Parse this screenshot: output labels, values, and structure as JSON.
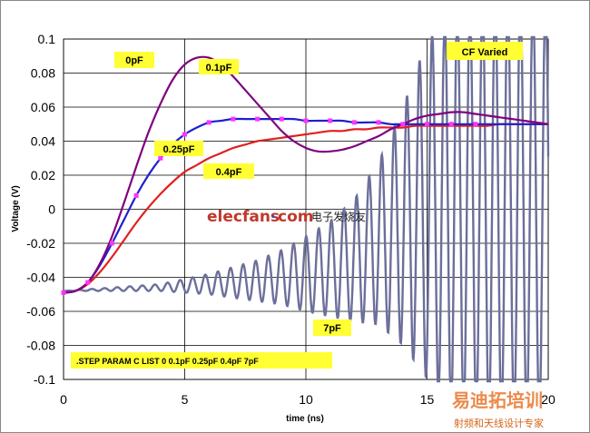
{
  "chart_data": {
    "type": "line",
    "xlabel": "time (ns)",
    "ylabel": "Voltage (V)",
    "xlim": [
      0,
      20
    ],
    "ylim": [
      -0.1,
      0.1
    ],
    "x_ticks": [
      "0",
      "5",
      "10",
      "15",
      "20"
    ],
    "y_ticks": [
      "0.1",
      "0.08",
      "0.06",
      "0.04",
      "0.02",
      "0",
      "-0.02",
      "-0.04",
      "-0.06",
      "-0.08",
      "-0.1"
    ],
    "grid": true,
    "series": [
      {
        "name": "0.1pF",
        "color": "#800080",
        "marker": "none",
        "x": [
          0,
          0.5,
          1,
          1.5,
          2,
          2.5,
          3,
          3.5,
          4,
          4.5,
          5,
          5.5,
          6,
          6.5,
          7,
          7.5,
          8,
          8.5,
          9,
          9.5,
          10,
          10.5,
          11,
          11.5,
          12,
          12.5,
          13,
          13.5,
          14,
          14.5,
          15,
          15.5,
          16,
          16.5,
          17,
          17.5,
          18,
          18.5,
          19,
          19.5,
          20
        ],
        "y": [
          -0.049,
          -0.048,
          -0.043,
          -0.032,
          -0.016,
          0.004,
          0.025,
          0.045,
          0.062,
          0.076,
          0.085,
          0.089,
          0.089,
          0.085,
          0.078,
          0.07,
          0.062,
          0.054,
          0.046,
          0.04,
          0.036,
          0.034,
          0.034,
          0.035,
          0.037,
          0.04,
          0.043,
          0.047,
          0.05,
          0.053,
          0.055,
          0.056,
          0.057,
          0.057,
          0.056,
          0.055,
          0.054,
          0.053,
          0.052,
          0.051,
          0.05
        ]
      },
      {
        "name": "0.25pF",
        "color": "#1f1fd0",
        "marker": "square",
        "marker_color": "#ff33ff",
        "x": [
          0,
          0.5,
          1,
          1.5,
          2,
          2.5,
          3,
          3.5,
          4,
          4.5,
          5,
          5.5,
          6,
          6.5,
          7,
          7.5,
          8,
          8.5,
          9,
          9.5,
          10,
          10.5,
          11,
          11.5,
          12,
          12.5,
          13,
          13.5,
          14,
          14.5,
          15,
          15.5,
          16,
          16.5,
          17,
          17.5,
          18,
          18.5,
          19,
          19.5,
          20
        ],
        "y": [
          -0.049,
          -0.048,
          -0.043,
          -0.033,
          -0.02,
          -0.006,
          0.008,
          0.02,
          0.03,
          0.038,
          0.044,
          0.048,
          0.051,
          0.052,
          0.053,
          0.053,
          0.053,
          0.053,
          0.053,
          0.053,
          0.052,
          0.052,
          0.052,
          0.052,
          0.051,
          0.051,
          0.051,
          0.05,
          0.05,
          0.05,
          0.05,
          0.05,
          0.05,
          0.05,
          0.05,
          0.05,
          0.05,
          0.05,
          0.05,
          0.05,
          0.05
        ]
      },
      {
        "name": "0.4pF",
        "color": "#e02020",
        "marker": "none",
        "x": [
          0,
          0.5,
          1,
          1.5,
          2,
          2.5,
          3,
          3.5,
          4,
          4.5,
          5,
          5.5,
          6,
          6.5,
          7,
          7.5,
          8,
          8.5,
          9,
          9.5,
          10,
          10.5,
          11,
          11.5,
          12,
          12.5,
          13,
          13.5,
          14,
          14.5,
          15,
          15.5,
          16,
          16.5,
          17,
          17.5,
          18,
          18.5,
          19,
          19.5,
          20
        ],
        "y": [
          -0.049,
          -0.048,
          -0.044,
          -0.037,
          -0.028,
          -0.018,
          -0.008,
          0.001,
          0.009,
          0.016,
          0.022,
          0.026,
          0.03,
          0.033,
          0.036,
          0.038,
          0.04,
          0.041,
          0.042,
          0.043,
          0.044,
          0.045,
          0.046,
          0.046,
          0.047,
          0.047,
          0.048,
          0.048,
          0.048,
          0.049,
          0.049,
          0.049,
          0.049,
          0.049,
          0.049,
          0.049,
          0.05,
          0.05,
          0.05,
          0.05,
          0.05
        ]
      },
      {
        "name": "7pF",
        "color": "#6b6f9a",
        "marker": "none",
        "model": "oscillation",
        "period_ns": 0.52,
        "envelope": {
          "t": [
            0,
            2,
            4,
            5,
            6,
            7,
            8,
            9,
            10,
            11,
            12,
            13,
            14,
            14.5,
            15,
            16,
            20
          ],
          "amplitude": [
            0,
            0.001,
            0.002,
            0.004,
            0.006,
            0.009,
            0.012,
            0.016,
            0.022,
            0.028,
            0.036,
            0.048,
            0.07,
            0.085,
            0.1,
            0.12,
            0.13
          ],
          "center": [
            -0.048,
            -0.047,
            -0.046,
            -0.045,
            -0.044,
            -0.043,
            -0.042,
            -0.04,
            -0.038,
            -0.035,
            -0.03,
            -0.02,
            -0.01,
            -0.005,
            0.0,
            0.0,
            0.0
          ]
        }
      }
    ],
    "annotations": [
      {
        "text": "0pF"
      },
      {
        "text": "0.1pF"
      },
      {
        "text": "0.25pF"
      },
      {
        "text": "0.4pF"
      },
      {
        "text": "CF Varied"
      },
      {
        "text": "7pF"
      },
      {
        "text": ".STEP PARAM C LIST 0 0.1pF 0.25pF 0.4pF 7pF"
      }
    ],
    "watermarks": {
      "elecfans_name": "elecfans",
      "elecfans_domain": "com",
      "elecfans_cn": "电子发烧友",
      "corner_cn": "易迪拓培训",
      "corner_sub": "射频和天线设计专家"
    }
  }
}
